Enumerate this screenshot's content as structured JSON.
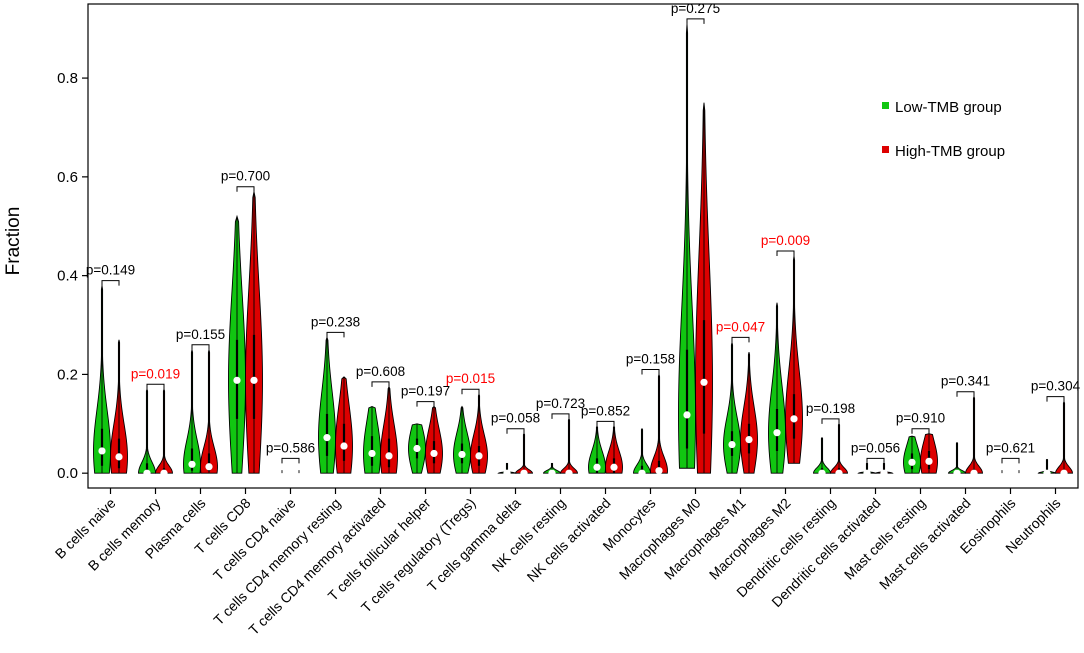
{
  "chart_data": {
    "type": "violin",
    "ylabel": "Fraction",
    "xlabel": "",
    "ylim": [
      -0.03,
      0.95
    ],
    "yticks": [
      "0.0",
      "0.2",
      "0.4",
      "0.6",
      "0.8"
    ],
    "ytick_values": [
      0.0,
      0.2,
      0.4,
      0.6,
      0.8
    ],
    "legend_position": "top-right",
    "significant_color": "#ff0000",
    "series": [
      {
        "name": "Low-TMB group",
        "color": "#11c611"
      },
      {
        "name": "High-TMB group",
        "color": "#dd0000"
      }
    ],
    "categories": [
      {
        "label": "B cells naive",
        "p": "p=0.149",
        "sig": false,
        "low": {
          "min": 0.0,
          "max": 0.38,
          "median": 0.045,
          "q1": 0.015,
          "q3": 0.09
        },
        "high": {
          "min": 0.0,
          "max": 0.27,
          "median": 0.033,
          "q1": 0.01,
          "q3": 0.07
        }
      },
      {
        "label": "B cells memory",
        "p": "p=0.019",
        "sig": true,
        "low": {
          "min": 0.0,
          "max": 0.17,
          "median": 0.0,
          "q1": 0.0,
          "q3": 0.02
        },
        "high": {
          "min": 0.0,
          "max": 0.17,
          "median": 0.0,
          "q1": 0.0,
          "q3": 0.01
        }
      },
      {
        "label": "Plasma cells",
        "p": "p=0.155",
        "sig": false,
        "low": {
          "min": 0.0,
          "max": 0.25,
          "median": 0.018,
          "q1": 0.005,
          "q3": 0.05
        },
        "high": {
          "min": 0.0,
          "max": 0.25,
          "median": 0.013,
          "q1": 0.004,
          "q3": 0.04
        }
      },
      {
        "label": "T cells CD8",
        "p": "p=0.700",
        "sig": false,
        "low": {
          "min": 0.0,
          "max": 0.52,
          "median": 0.188,
          "q1": 0.11,
          "q3": 0.27
        },
        "high": {
          "min": 0.0,
          "max": 0.57,
          "median": 0.188,
          "q1": 0.11,
          "q3": 0.28
        }
      },
      {
        "label": "T cells CD4 naive",
        "p": "p=0.586",
        "sig": false,
        "low": {
          "min": 0.0,
          "max": 0.0,
          "median": 0.0,
          "q1": 0.0,
          "q3": 0.0
        },
        "high": {
          "min": 0.0,
          "max": 0.0,
          "median": 0.0,
          "q1": 0.0,
          "q3": 0.0
        }
      },
      {
        "label": "T cells CD4 memory resting",
        "p": "p=0.238",
        "sig": false,
        "low": {
          "min": 0.0,
          "max": 0.275,
          "median": 0.072,
          "q1": 0.035,
          "q3": 0.12
        },
        "high": {
          "min": 0.0,
          "max": 0.195,
          "median": 0.055,
          "q1": 0.025,
          "q3": 0.1
        }
      },
      {
        "label": "T cells CD4 memory activated",
        "p": "p=0.608",
        "sig": false,
        "low": {
          "min": 0.0,
          "max": 0.135,
          "median": 0.04,
          "q1": 0.015,
          "q3": 0.075
        },
        "high": {
          "min": 0.0,
          "max": 0.175,
          "median": 0.035,
          "q1": 0.012,
          "q3": 0.07
        }
      },
      {
        "label": "T cells follicular helper",
        "p": "p=0.197",
        "sig": false,
        "low": {
          "min": 0.0,
          "max": 0.1,
          "median": 0.05,
          "q1": 0.03,
          "q3": 0.07
        },
        "high": {
          "min": 0.0,
          "max": 0.135,
          "median": 0.04,
          "q1": 0.02,
          "q3": 0.065
        }
      },
      {
        "label": "T cells regulatory (Tregs)",
        "p": "p=0.015",
        "sig": true,
        "low": {
          "min": 0.0,
          "max": 0.135,
          "median": 0.038,
          "q1": 0.02,
          "q3": 0.06
        },
        "high": {
          "min": 0.0,
          "max": 0.16,
          "median": 0.035,
          "q1": 0.015,
          "q3": 0.055
        }
      },
      {
        "label": "T cells gamma delta",
        "p": "p=0.058",
        "sig": false,
        "low": {
          "min": 0.0,
          "max": 0.02,
          "median": 0.0,
          "q1": 0.0,
          "q3": 0.0
        },
        "high": {
          "min": 0.0,
          "max": 0.08,
          "median": 0.0,
          "q1": 0.0,
          "q3": 0.0
        }
      },
      {
        "label": "NK cells resting",
        "p": "p=0.723",
        "sig": false,
        "low": {
          "min": 0.0,
          "max": 0.02,
          "median": 0.0,
          "q1": 0.0,
          "q3": 0.005
        },
        "high": {
          "min": 0.0,
          "max": 0.11,
          "median": 0.0,
          "q1": 0.0,
          "q3": 0.005
        }
      },
      {
        "label": "NK cells activated",
        "p": "p=0.852",
        "sig": false,
        "low": {
          "min": 0.0,
          "max": 0.095,
          "median": 0.012,
          "q1": 0.0,
          "q3": 0.03
        },
        "high": {
          "min": 0.0,
          "max": 0.095,
          "median": 0.012,
          "q1": 0.0,
          "q3": 0.03
        }
      },
      {
        "label": "Monocytes",
        "p": "p=0.158",
        "sig": false,
        "low": {
          "min": 0.0,
          "max": 0.09,
          "median": 0.0,
          "q1": 0.0,
          "q3": 0.015
        },
        "high": {
          "min": 0.0,
          "max": 0.2,
          "median": 0.005,
          "q1": 0.0,
          "q3": 0.025
        }
      },
      {
        "label": "Macrophages M0",
        "p": "p=0.275",
        "sig": false,
        "low": {
          "min": 0.01,
          "max": 0.91,
          "median": 0.118,
          "q1": 0.05,
          "q3": 0.25
        },
        "high": {
          "min": 0.0,
          "max": 0.75,
          "median": 0.184,
          "q1": 0.08,
          "q3": 0.31
        }
      },
      {
        "label": "Macrophages M1",
        "p": "p=0.047",
        "sig": true,
        "low": {
          "min": 0.0,
          "max": 0.265,
          "median": 0.058,
          "q1": 0.035,
          "q3": 0.085
        },
        "high": {
          "min": 0.0,
          "max": 0.245,
          "median": 0.068,
          "q1": 0.04,
          "q3": 0.1
        }
      },
      {
        "label": "Macrophages M2",
        "p": "p=0.009",
        "sig": true,
        "low": {
          "min": 0.0,
          "max": 0.345,
          "median": 0.082,
          "q1": 0.045,
          "q3": 0.13
        },
        "high": {
          "min": 0.02,
          "max": 0.44,
          "median": 0.11,
          "q1": 0.07,
          "q3": 0.16
        }
      },
      {
        "label": "Dendritic cells resting",
        "p": "p=0.198",
        "sig": false,
        "low": {
          "min": 0.0,
          "max": 0.072,
          "median": 0.0,
          "q1": 0.0,
          "q3": 0.01
        },
        "high": {
          "min": 0.0,
          "max": 0.1,
          "median": 0.0,
          "q1": 0.0,
          "q3": 0.01
        }
      },
      {
        "label": "Dendritic cells activated",
        "p": "p=0.056",
        "sig": false,
        "low": {
          "min": 0.0,
          "max": 0.02,
          "median": 0.0,
          "q1": 0.0,
          "q3": 0.0
        },
        "high": {
          "min": 0.0,
          "max": 0.02,
          "median": 0.0,
          "q1": 0.0,
          "q3": 0.0
        }
      },
      {
        "label": "Mast cells resting",
        "p": "p=0.910",
        "sig": false,
        "low": {
          "min": 0.0,
          "max": 0.075,
          "median": 0.022,
          "q1": 0.008,
          "q3": 0.04
        },
        "high": {
          "min": 0.0,
          "max": 0.08,
          "median": 0.024,
          "q1": 0.008,
          "q3": 0.045
        }
      },
      {
        "label": "Mast cells activated",
        "p": "p=0.341",
        "sig": false,
        "low": {
          "min": 0.0,
          "max": 0.062,
          "median": 0.0,
          "q1": 0.0,
          "q3": 0.005
        },
        "high": {
          "min": 0.0,
          "max": 0.155,
          "median": 0.0,
          "q1": 0.0,
          "q3": 0.008
        }
      },
      {
        "label": "Eosinophils",
        "p": "p=0.621",
        "sig": false,
        "low": {
          "min": 0.0,
          "max": 0.0,
          "median": 0.0,
          "q1": 0.0,
          "q3": 0.0
        },
        "high": {
          "min": 0.0,
          "max": 0.0,
          "median": 0.0,
          "q1": 0.0,
          "q3": 0.0
        }
      },
      {
        "label": "Neutrophils",
        "p": "p=0.304",
        "sig": false,
        "low": {
          "min": 0.0,
          "max": 0.028,
          "median": 0.0,
          "q1": 0.0,
          "q3": 0.0
        },
        "high": {
          "min": 0.0,
          "max": 0.145,
          "median": 0.0,
          "q1": 0.0,
          "q3": 0.005
        }
      }
    ]
  }
}
